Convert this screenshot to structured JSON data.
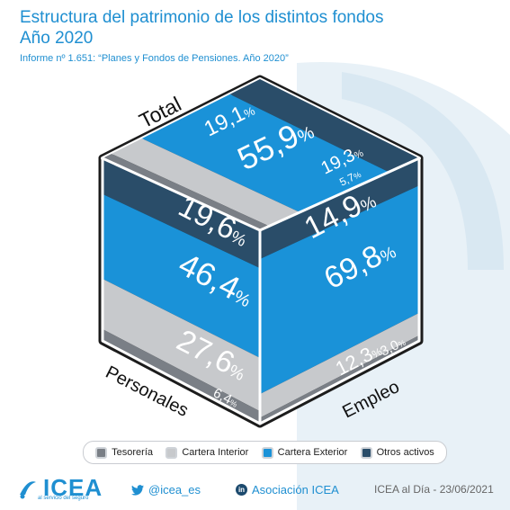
{
  "header": {
    "title_line1": "Estructura del patrimonio de los distintos fondos",
    "title_line2": "Año 2020",
    "subtitle": "Informe nº 1.651: “Planes y Fondos de Pensiones. Año 2020”"
  },
  "chart_data": {
    "type": "stacked-bar (3D cube)",
    "categories": [
      "Total",
      "Personales",
      "Empleo"
    ],
    "series": [
      {
        "name": "Tesorería",
        "values": [
          5.7,
          6.4,
          3.0
        ],
        "color": "#7a7f86"
      },
      {
        "name": "Cartera Interior",
        "values": [
          19.3,
          27.6,
          12.3
        ],
        "color": "#c7c9cc"
      },
      {
        "name": "Cartera Exterior",
        "values": [
          55.9,
          46.4,
          69.8
        ],
        "color": "#1a92d8"
      },
      {
        "name": "Otros activos",
        "values": [
          19.1,
          19.6,
          14.9
        ],
        "color": "#2a4d69"
      }
    ],
    "value_suffix": "%",
    "decimal_separator": ","
  },
  "legend": {
    "items": [
      {
        "label": "Tesorería",
        "color": "#7a7f86"
      },
      {
        "label": "Cartera Interior",
        "color": "#c7c9cc"
      },
      {
        "label": "Cartera Exterior",
        "color": "#1a92d8"
      },
      {
        "label": "Otros activos",
        "color": "#2a4d69"
      }
    ]
  },
  "footer": {
    "logo_text": "ICEA",
    "logo_subtext": "al servicio del seguro",
    "twitter": "@icea_es",
    "linkedin_badge": "in",
    "linkedin": "Asociación ICEA",
    "credit": "ICEA al Día - 23/06/2021"
  },
  "icons": [
    "twitter-icon",
    "linkedin-icon",
    "icea-logo-icon"
  ]
}
